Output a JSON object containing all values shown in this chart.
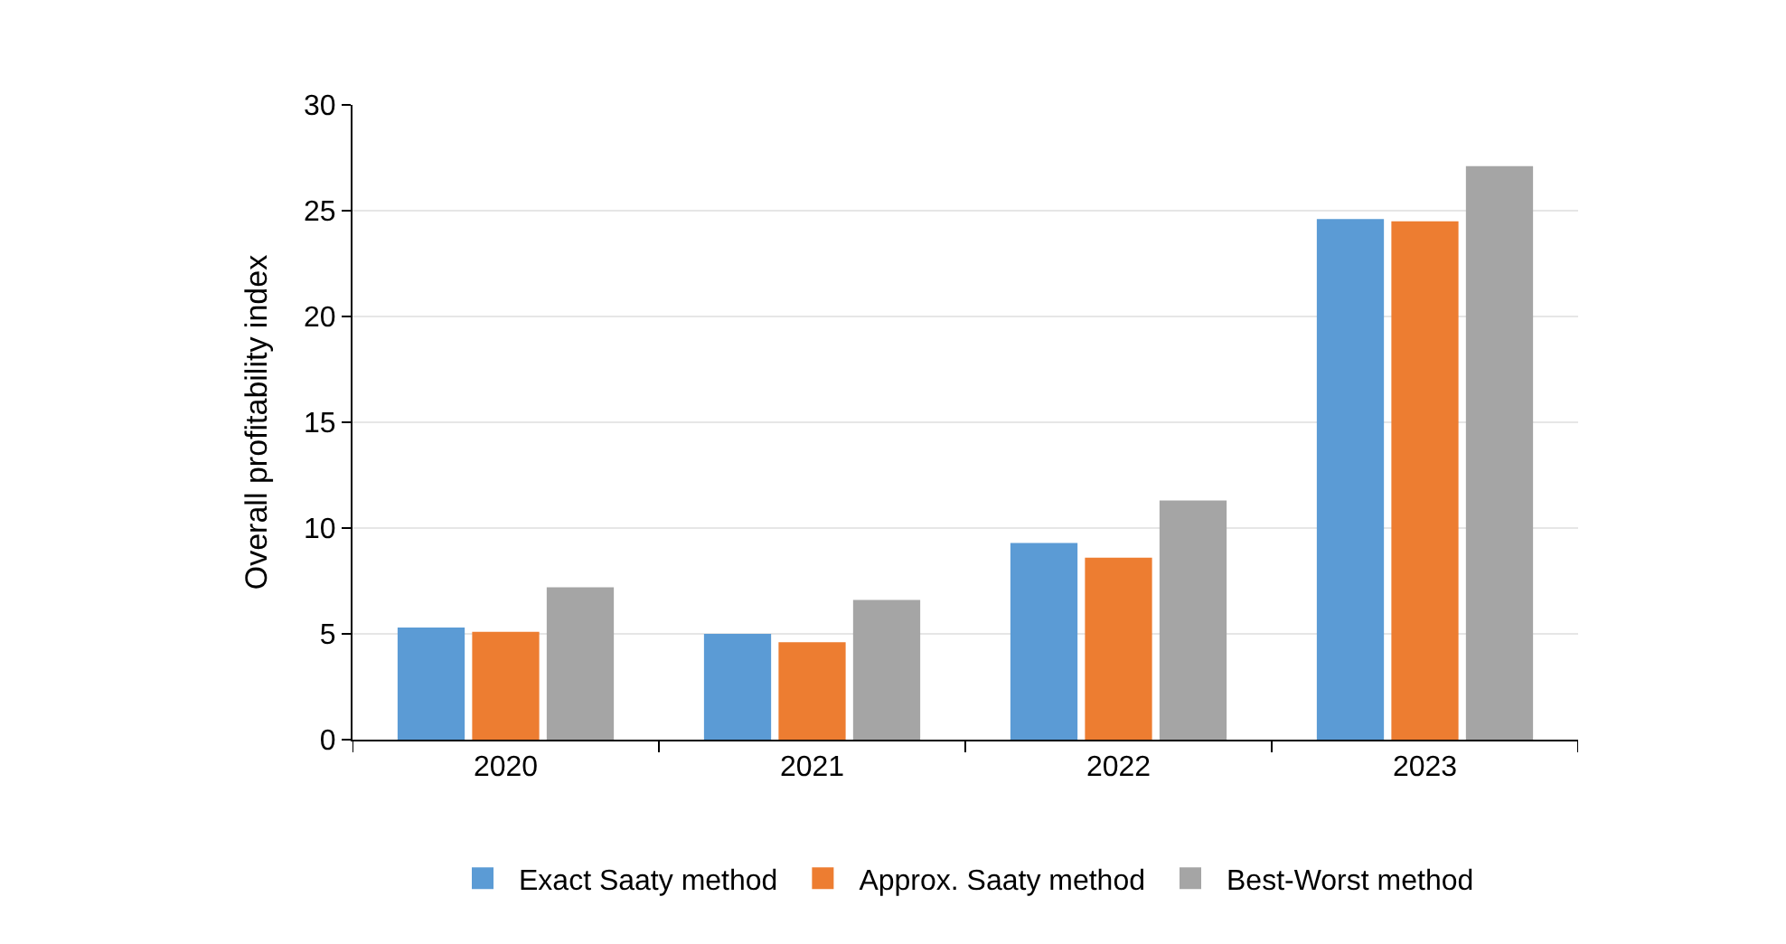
{
  "chart_data": {
    "type": "bar",
    "ylabel": "Overall profitability index",
    "categories": [
      "2020",
      "2021",
      "2022",
      "2023"
    ],
    "series": [
      {
        "name": "Exact Saaty method",
        "color": "#5b9bd5",
        "values": [
          5.3,
          5.0,
          9.3,
          24.6
        ]
      },
      {
        "name": "Approx. Saaty method",
        "color": "#ed7d31",
        "values": [
          5.1,
          4.6,
          8.6,
          24.5
        ]
      },
      {
        "name": "Best-Worst method",
        "color": "#a5a5a5",
        "values": [
          7.2,
          6.6,
          11.3,
          27.1
        ]
      }
    ],
    "ylim": [
      0,
      30
    ],
    "yticks": [
      0,
      5,
      10,
      15,
      20,
      25,
      30
    ],
    "grid": "y",
    "legend": "bottom"
  }
}
